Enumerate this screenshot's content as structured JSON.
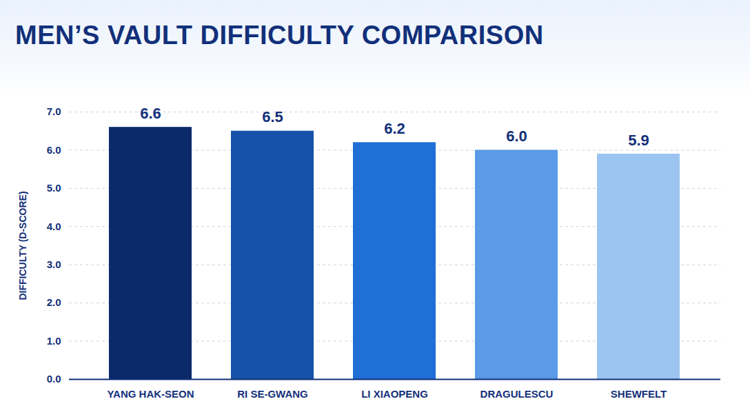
{
  "chart_data": {
    "type": "bar",
    "title": "MEN’S VAULT DIFFICULTY COMPARISON",
    "y_label": "DIFFICULTY (D-SCORE)",
    "categories": [
      "YANG HAK-SEON",
      "RI SE-GWANG",
      "LI XIAOPENG",
      "DRAGULESCU",
      "SHEWFELT"
    ],
    "values": [
      6.6,
      6.5,
      6.2,
      6.0,
      5.9
    ],
    "value_labels": [
      "6.6",
      "6.5",
      "6.2",
      "6.0",
      "5.9"
    ],
    "colors": [
      "#0a2a6b",
      "#1552a8",
      "#1f6fd6",
      "#5a9ae6",
      "#9cc4f0"
    ],
    "ylim": [
      0,
      7
    ],
    "yticks": [
      {
        "value": 0,
        "label": "0.0"
      },
      {
        "value": 1,
        "label": "1.0"
      },
      {
        "value": 2,
        "label": "2.0"
      },
      {
        "value": 3,
        "label": "3.0"
      },
      {
        "value": 4,
        "label": "4.0"
      },
      {
        "value": 5,
        "label": "5.0"
      },
      {
        "value": 6,
        "label": "6.0"
      },
      {
        "value": 7,
        "label": "7.0"
      }
    ],
    "grid": true,
    "data_labels": true
  }
}
